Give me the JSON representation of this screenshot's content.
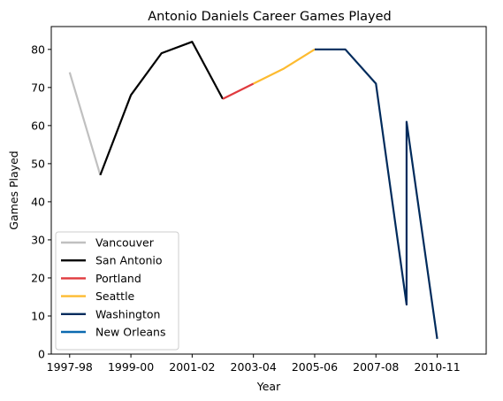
{
  "chart_data": {
    "type": "line",
    "title": "Antonio Daniels Career Games Played",
    "xlabel": "Year",
    "ylabel": "Games Played",
    "ylim": [
      0,
      86
    ],
    "xlim": [
      -0.6,
      13.6
    ],
    "xtick_labels": [
      "1997-98",
      "1999-00",
      "2001-02",
      "2003-04",
      "2005-06",
      "2007-08",
      "2010-11"
    ],
    "xtick_positions": [
      0,
      2,
      4,
      6,
      8,
      10,
      12
    ],
    "yticks": [
      0,
      10,
      20,
      30,
      40,
      50,
      60,
      70,
      80
    ],
    "legend_position": "lower-left",
    "grid": false,
    "series": [
      {
        "name": "Vancouver",
        "color": "#c0c0c0",
        "points": [
          [
            0,
            74
          ],
          [
            1,
            47
          ]
        ]
      },
      {
        "name": "San Antonio",
        "color": "#000000",
        "points": [
          [
            1,
            47
          ],
          [
            2,
            68
          ],
          [
            3,
            79
          ],
          [
            4,
            82
          ],
          [
            5,
            67
          ]
        ]
      },
      {
        "name": "Portland",
        "color": "#e03a3e",
        "points": [
          [
            5,
            67
          ],
          [
            6,
            71
          ]
        ]
      },
      {
        "name": "Seattle",
        "color": "#fdbb30",
        "points": [
          [
            6,
            71
          ],
          [
            7,
            75
          ],
          [
            8,
            80
          ]
        ]
      },
      {
        "name": "Washington",
        "color": "#002b5c",
        "points": [
          [
            8,
            80
          ],
          [
            9,
            80
          ],
          [
            10,
            71
          ],
          [
            11,
            13
          ],
          [
            11,
            61
          ],
          [
            12,
            4
          ]
        ]
      },
      {
        "name": "New Orleans",
        "color": "#0c6ab0",
        "points": []
      }
    ]
  }
}
